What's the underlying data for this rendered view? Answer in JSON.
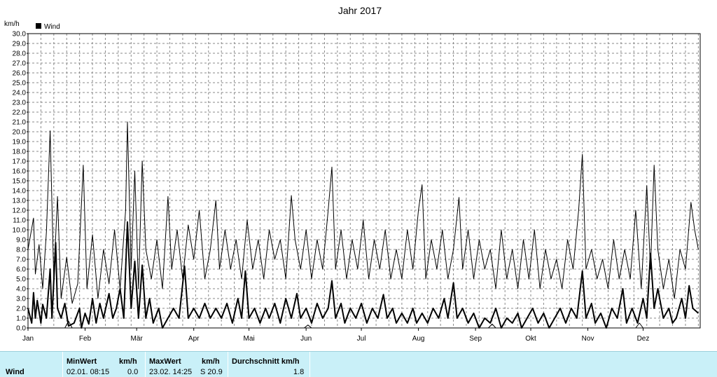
{
  "chart_data": {
    "type": "line",
    "title": "Jahr 2017",
    "ylabel": "km/h",
    "ylim": [
      0,
      30
    ],
    "yticks": [
      "0.0",
      "1.0",
      "2.0",
      "3.0",
      "4.0",
      "5.0",
      "6.0",
      "7.0",
      "8.0",
      "9.0",
      "10.0",
      "11.0",
      "12.0",
      "13.0",
      "14.0",
      "15.0",
      "16.0",
      "17.0",
      "18.0",
      "19.0",
      "20.0",
      "21.0",
      "22.0",
      "23.0",
      "24.0",
      "25.0",
      "26.0",
      "27.0",
      "28.0",
      "29.0",
      "30.0"
    ],
    "xlim": [
      0,
      365
    ],
    "categories": [
      "Jan",
      "Feb",
      "Mär",
      "Apr",
      "Mai",
      "Jun",
      "Jul",
      "Aug",
      "Sep",
      "Okt",
      "Nov",
      "Dez"
    ],
    "month_start_days": [
      0,
      31,
      59,
      90,
      120,
      151,
      181,
      212,
      243,
      273,
      304,
      334
    ],
    "grid": true,
    "legend": {
      "position": "top-left",
      "entries": [
        "Wind"
      ]
    },
    "series": [
      {
        "name": "Wind",
        "role": "daily-max",
        "color": "#000000",
        "keypoints": [
          [
            0,
            8
          ],
          [
            3,
            11.2
          ],
          [
            4,
            5.5
          ],
          [
            6,
            8.5
          ],
          [
            8,
            4
          ],
          [
            10,
            9.8
          ],
          [
            12,
            20.1
          ],
          [
            14,
            5
          ],
          [
            16,
            13.4
          ],
          [
            18,
            3
          ],
          [
            21,
            7.2
          ],
          [
            24,
            2.5
          ],
          [
            27,
            4.5
          ],
          [
            30,
            16.6
          ],
          [
            32,
            4
          ],
          [
            35,
            9.5
          ],
          [
            38,
            3
          ],
          [
            41,
            8
          ],
          [
            44,
            4.5
          ],
          [
            47,
            10
          ],
          [
            50,
            4
          ],
          [
            53,
            12
          ],
          [
            54,
            21
          ],
          [
            56,
            6
          ],
          [
            58,
            16
          ],
          [
            60,
            4
          ],
          [
            62,
            17
          ],
          [
            64,
            8
          ],
          [
            67,
            5
          ],
          [
            70,
            9
          ],
          [
            73,
            4
          ],
          [
            76,
            13.4
          ],
          [
            78,
            6
          ],
          [
            81,
            10
          ],
          [
            84,
            5
          ],
          [
            87,
            10.5
          ],
          [
            90,
            7
          ],
          [
            93,
            12
          ],
          [
            96,
            5
          ],
          [
            99,
            8
          ],
          [
            102,
            13
          ],
          [
            104,
            6
          ],
          [
            107,
            10
          ],
          [
            110,
            6
          ],
          [
            113,
            9
          ],
          [
            116,
            5
          ],
          [
            119,
            11
          ],
          [
            122,
            6
          ],
          [
            125,
            9
          ],
          [
            128,
            5
          ],
          [
            131,
            10
          ],
          [
            134,
            7
          ],
          [
            137,
            9
          ],
          [
            140,
            5
          ],
          [
            143,
            13.5
          ],
          [
            145,
            9
          ],
          [
            148,
            6
          ],
          [
            151,
            10
          ],
          [
            154,
            5
          ],
          [
            157,
            9
          ],
          [
            160,
            6
          ],
          [
            163,
            12
          ],
          [
            165,
            16.4
          ],
          [
            167,
            6
          ],
          [
            170,
            10
          ],
          [
            173,
            5
          ],
          [
            176,
            9
          ],
          [
            179,
            6
          ],
          [
            182,
            11
          ],
          [
            185,
            5
          ],
          [
            188,
            9
          ],
          [
            191,
            6
          ],
          [
            194,
            10
          ],
          [
            197,
            5
          ],
          [
            200,
            8
          ],
          [
            203,
            5
          ],
          [
            206,
            10
          ],
          [
            209,
            6
          ],
          [
            212,
            12
          ],
          [
            214,
            14.6
          ],
          [
            216,
            5
          ],
          [
            219,
            9
          ],
          [
            222,
            6
          ],
          [
            225,
            10
          ],
          [
            228,
            5
          ],
          [
            231,
            8
          ],
          [
            234,
            13.3
          ],
          [
            236,
            6
          ],
          [
            239,
            10
          ],
          [
            242,
            5
          ],
          [
            245,
            9
          ],
          [
            248,
            6
          ],
          [
            251,
            8
          ],
          [
            254,
            4
          ],
          [
            257,
            10
          ],
          [
            260,
            5
          ],
          [
            263,
            8
          ],
          [
            266,
            4
          ],
          [
            269,
            9
          ],
          [
            272,
            5
          ],
          [
            275,
            10
          ],
          [
            278,
            4
          ],
          [
            281,
            8
          ],
          [
            284,
            5
          ],
          [
            287,
            7
          ],
          [
            290,
            4
          ],
          [
            293,
            9
          ],
          [
            296,
            6
          ],
          [
            299,
            12
          ],
          [
            301,
            17.7
          ],
          [
            303,
            6
          ],
          [
            306,
            8
          ],
          [
            309,
            5
          ],
          [
            312,
            7
          ],
          [
            315,
            4
          ],
          [
            318,
            9
          ],
          [
            321,
            5
          ],
          [
            324,
            8
          ],
          [
            327,
            5
          ],
          [
            330,
            12
          ],
          [
            333,
            4
          ],
          [
            336,
            14.5
          ],
          [
            338,
            6
          ],
          [
            340,
            16.6
          ],
          [
            342,
            8
          ],
          [
            345,
            4
          ],
          [
            348,
            7
          ],
          [
            351,
            3
          ],
          [
            354,
            8
          ],
          [
            357,
            6
          ],
          [
            360,
            12.8
          ],
          [
            362,
            10
          ],
          [
            364,
            8
          ]
        ]
      },
      {
        "name": "Wind",
        "role": "daily-mean",
        "color": "#000000",
        "keypoints": [
          [
            0,
            2
          ],
          [
            2,
            0.5
          ],
          [
            3,
            3.6
          ],
          [
            4,
            1
          ],
          [
            5,
            2.8
          ],
          [
            7,
            0.5
          ],
          [
            8,
            2.4
          ],
          [
            10,
            1
          ],
          [
            12,
            6
          ],
          [
            13,
            1
          ],
          [
            15,
            8.7
          ],
          [
            16,
            2
          ],
          [
            18,
            1
          ],
          [
            20,
            2.5
          ],
          [
            22,
            0.2
          ],
          [
            25,
            0.5
          ],
          [
            28,
            2
          ],
          [
            29,
            0
          ],
          [
            31,
            1.5
          ],
          [
            33,
            0.4
          ],
          [
            35,
            3
          ],
          [
            37,
            0.5
          ],
          [
            39,
            2.5
          ],
          [
            41,
            1
          ],
          [
            44,
            3.5
          ],
          [
            46,
            1
          ],
          [
            48,
            2
          ],
          [
            50,
            4
          ],
          [
            52,
            1
          ],
          [
            54,
            10.8
          ],
          [
            56,
            2
          ],
          [
            58,
            6.8
          ],
          [
            60,
            1
          ],
          [
            62,
            6.4
          ],
          [
            64,
            1
          ],
          [
            66,
            3
          ],
          [
            68,
            0.5
          ],
          [
            71,
            2
          ],
          [
            73,
            0
          ],
          [
            76,
            1
          ],
          [
            79,
            2
          ],
          [
            82,
            1
          ],
          [
            85,
            6.3
          ],
          [
            87,
            1
          ],
          [
            90,
            2
          ],
          [
            93,
            1
          ],
          [
            96,
            2.5
          ],
          [
            99,
            1
          ],
          [
            102,
            2
          ],
          [
            105,
            1
          ],
          [
            108,
            2.5
          ],
          [
            111,
            0.5
          ],
          [
            114,
            3
          ],
          [
            116,
            1
          ],
          [
            118,
            5.8
          ],
          [
            120,
            1
          ],
          [
            123,
            2
          ],
          [
            126,
            0.5
          ],
          [
            129,
            2
          ],
          [
            131,
            1
          ],
          [
            134,
            2.5
          ],
          [
            137,
            0.5
          ],
          [
            140,
            3
          ],
          [
            143,
            1
          ],
          [
            146,
            3.5
          ],
          [
            148,
            1
          ],
          [
            151,
            2
          ],
          [
            154,
            0.5
          ],
          [
            157,
            2.5
          ],
          [
            160,
            1
          ],
          [
            163,
            2
          ],
          [
            165,
            4.8
          ],
          [
            167,
            1
          ],
          [
            170,
            2.5
          ],
          [
            172,
            0.5
          ],
          [
            175,
            2
          ],
          [
            178,
            1
          ],
          [
            181,
            2.5
          ],
          [
            184,
            0.5
          ],
          [
            187,
            2
          ],
          [
            190,
            1
          ],
          [
            193,
            3.4
          ],
          [
            195,
            1
          ],
          [
            198,
            2
          ],
          [
            200,
            0.5
          ],
          [
            203,
            1.5
          ],
          [
            206,
            0.5
          ],
          [
            209,
            2
          ],
          [
            211,
            0.5
          ],
          [
            214,
            1.5
          ],
          [
            217,
            0.5
          ],
          [
            220,
            2
          ],
          [
            223,
            1
          ],
          [
            226,
            3
          ],
          [
            228,
            1
          ],
          [
            231,
            4.6
          ],
          [
            233,
            1
          ],
          [
            236,
            2
          ],
          [
            239,
            0.5
          ],
          [
            242,
            1.5
          ],
          [
            245,
            0
          ],
          [
            248,
            1
          ],
          [
            251,
            0.5
          ],
          [
            254,
            2
          ],
          [
            257,
            0
          ],
          [
            260,
            1
          ],
          [
            263,
            0.5
          ],
          [
            266,
            1.5
          ],
          [
            268,
            0
          ],
          [
            271,
            1
          ],
          [
            274,
            2
          ],
          [
            277,
            0.5
          ],
          [
            280,
            1.5
          ],
          [
            283,
            0
          ],
          [
            286,
            1
          ],
          [
            289,
            2
          ],
          [
            292,
            0.5
          ],
          [
            295,
            2
          ],
          [
            298,
            1
          ],
          [
            301,
            5.8
          ],
          [
            303,
            1
          ],
          [
            306,
            2.5
          ],
          [
            308,
            0.5
          ],
          [
            311,
            1.5
          ],
          [
            314,
            0
          ],
          [
            317,
            2
          ],
          [
            320,
            1
          ],
          [
            323,
            4
          ],
          [
            325,
            0.5
          ],
          [
            328,
            2
          ],
          [
            331,
            0.5
          ],
          [
            334,
            3
          ],
          [
            336,
            1
          ],
          [
            338,
            7.6
          ],
          [
            340,
            2
          ],
          [
            342,
            4
          ],
          [
            345,
            1
          ],
          [
            348,
            2
          ],
          [
            350,
            0.5
          ],
          [
            352,
            1
          ],
          [
            355,
            3
          ],
          [
            357,
            1
          ],
          [
            359,
            4.3
          ],
          [
            361,
            2
          ],
          [
            364,
            1.5
          ]
        ]
      },
      {
        "name": "Wind",
        "role": "daily-min",
        "color": "#000000",
        "keypoints": [
          [
            0,
            0
          ],
          [
            20,
            0
          ],
          [
            22,
            0.7
          ],
          [
            24,
            0
          ],
          [
            150,
            0
          ],
          [
            152,
            0.3
          ],
          [
            154,
            0
          ],
          [
            250,
            0
          ],
          [
            252,
            0.4
          ],
          [
            254,
            0
          ],
          [
            330,
            0
          ],
          [
            332,
            0.5
          ],
          [
            334,
            0
          ],
          [
            364,
            0
          ]
        ]
      }
    ]
  },
  "stats": {
    "row_label": "Wind",
    "min_header": "MinWert",
    "min_unit": "km/h",
    "min_date": "02.01.  08:15",
    "min_value": "0.0",
    "max_header": "MaxWert",
    "max_unit": "km/h",
    "max_date": "23.02.  14:25",
    "max_value": "S 20.9",
    "avg_header": "Durchschnitt km/h",
    "avg_value": "1.8"
  }
}
